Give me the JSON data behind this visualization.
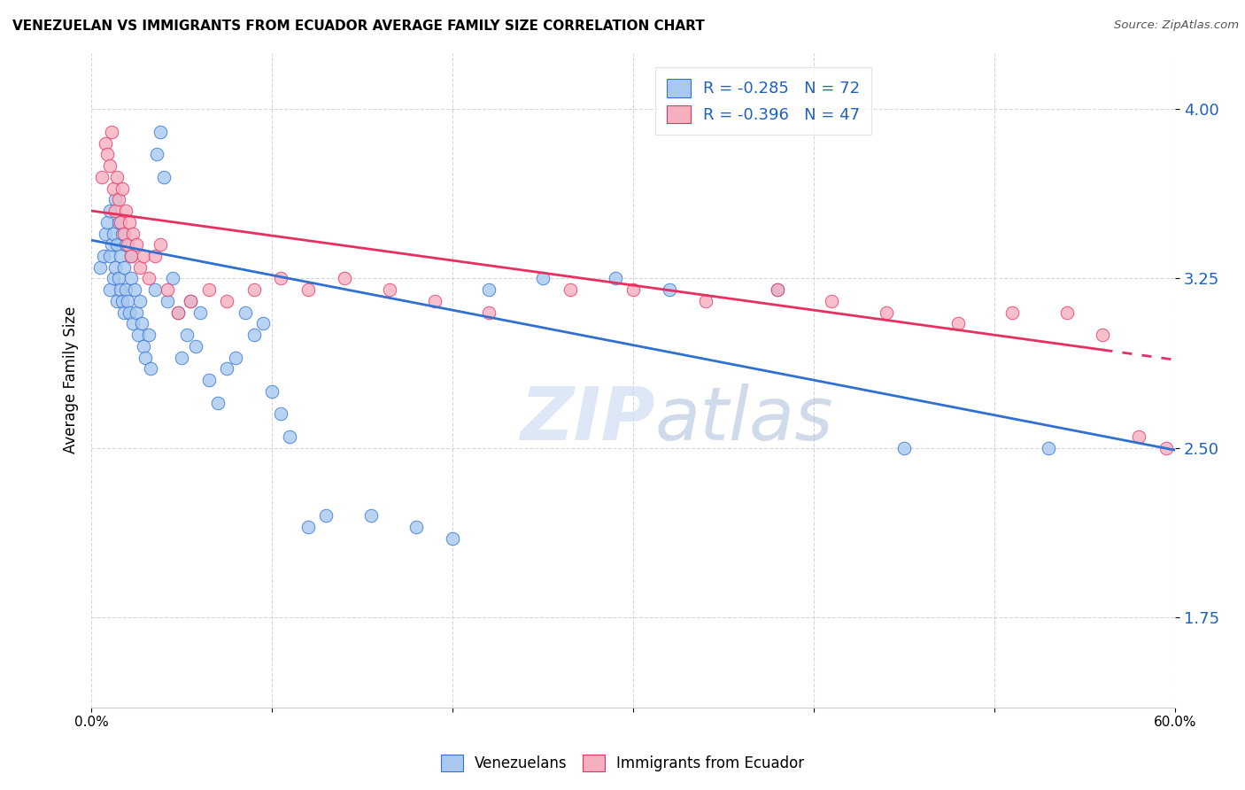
{
  "title": "VENEZUELAN VS IMMIGRANTS FROM ECUADOR AVERAGE FAMILY SIZE CORRELATION CHART",
  "source": "Source: ZipAtlas.com",
  "ylabel": "Average Family Size",
  "yticks": [
    1.75,
    2.5,
    3.25,
    4.0
  ],
  "xlim": [
    0.0,
    0.6
  ],
  "ylim": [
    1.35,
    4.25
  ],
  "legend_blue_label": "R = -0.285   N = 72",
  "legend_pink_label": "R = -0.396   N = 47",
  "legend_blue_bottom": "Venezuelans",
  "legend_pink_bottom": "Immigrants from Ecuador",
  "blue_color": "#a8c8f0",
  "pink_color": "#f5b0c0",
  "trendline_blue": "#3070d0",
  "trendline_pink": "#e83060",
  "watermark_zip": "ZIP",
  "watermark_atlas": "atlas",
  "blue_R": -0.285,
  "pink_R": -0.396,
  "blue_intercept": 3.42,
  "blue_slope": -1.55,
  "pink_intercept": 3.55,
  "pink_slope": -1.1,
  "blue_points_x": [
    0.005,
    0.007,
    0.008,
    0.009,
    0.01,
    0.01,
    0.01,
    0.011,
    0.012,
    0.012,
    0.013,
    0.013,
    0.014,
    0.014,
    0.015,
    0.015,
    0.016,
    0.016,
    0.017,
    0.017,
    0.018,
    0.018,
    0.019,
    0.019,
    0.02,
    0.021,
    0.022,
    0.022,
    0.023,
    0.024,
    0.025,
    0.026,
    0.027,
    0.028,
    0.029,
    0.03,
    0.032,
    0.033,
    0.035,
    0.036,
    0.038,
    0.04,
    0.042,
    0.045,
    0.048,
    0.05,
    0.053,
    0.055,
    0.058,
    0.06,
    0.065,
    0.07,
    0.075,
    0.08,
    0.085,
    0.09,
    0.095,
    0.1,
    0.105,
    0.11,
    0.12,
    0.13,
    0.155,
    0.18,
    0.2,
    0.22,
    0.25,
    0.29,
    0.32,
    0.38,
    0.45,
    0.53
  ],
  "blue_points_y": [
    3.3,
    3.35,
    3.45,
    3.5,
    3.2,
    3.35,
    3.55,
    3.4,
    3.25,
    3.45,
    3.3,
    3.6,
    3.15,
    3.4,
    3.25,
    3.5,
    3.2,
    3.35,
    3.15,
    3.45,
    3.1,
    3.3,
    3.2,
    3.4,
    3.15,
    3.1,
    3.25,
    3.35,
    3.05,
    3.2,
    3.1,
    3.0,
    3.15,
    3.05,
    2.95,
    2.9,
    3.0,
    2.85,
    3.2,
    3.8,
    3.9,
    3.7,
    3.15,
    3.25,
    3.1,
    2.9,
    3.0,
    3.15,
    2.95,
    3.1,
    2.8,
    2.7,
    2.85,
    2.9,
    3.1,
    3.0,
    3.05,
    2.75,
    2.65,
    2.55,
    2.15,
    2.2,
    2.2,
    2.15,
    2.1,
    3.2,
    3.25,
    3.25,
    3.2,
    3.2,
    2.5,
    2.5
  ],
  "pink_points_x": [
    0.006,
    0.008,
    0.009,
    0.01,
    0.011,
    0.012,
    0.013,
    0.014,
    0.015,
    0.016,
    0.017,
    0.018,
    0.019,
    0.02,
    0.021,
    0.022,
    0.023,
    0.025,
    0.027,
    0.029,
    0.032,
    0.035,
    0.038,
    0.042,
    0.048,
    0.055,
    0.065,
    0.075,
    0.09,
    0.105,
    0.12,
    0.14,
    0.165,
    0.19,
    0.22,
    0.265,
    0.3,
    0.34,
    0.38,
    0.41,
    0.44,
    0.48,
    0.51,
    0.54,
    0.56,
    0.58,
    0.595
  ],
  "pink_points_y": [
    3.7,
    3.85,
    3.8,
    3.75,
    3.9,
    3.65,
    3.55,
    3.7,
    3.6,
    3.5,
    3.65,
    3.45,
    3.55,
    3.4,
    3.5,
    3.35,
    3.45,
    3.4,
    3.3,
    3.35,
    3.25,
    3.35,
    3.4,
    3.2,
    3.1,
    3.15,
    3.2,
    3.15,
    3.2,
    3.25,
    3.2,
    3.25,
    3.2,
    3.15,
    3.1,
    3.2,
    3.2,
    3.15,
    3.2,
    3.15,
    3.1,
    3.05,
    3.1,
    3.1,
    3.0,
    2.55,
    2.5
  ]
}
